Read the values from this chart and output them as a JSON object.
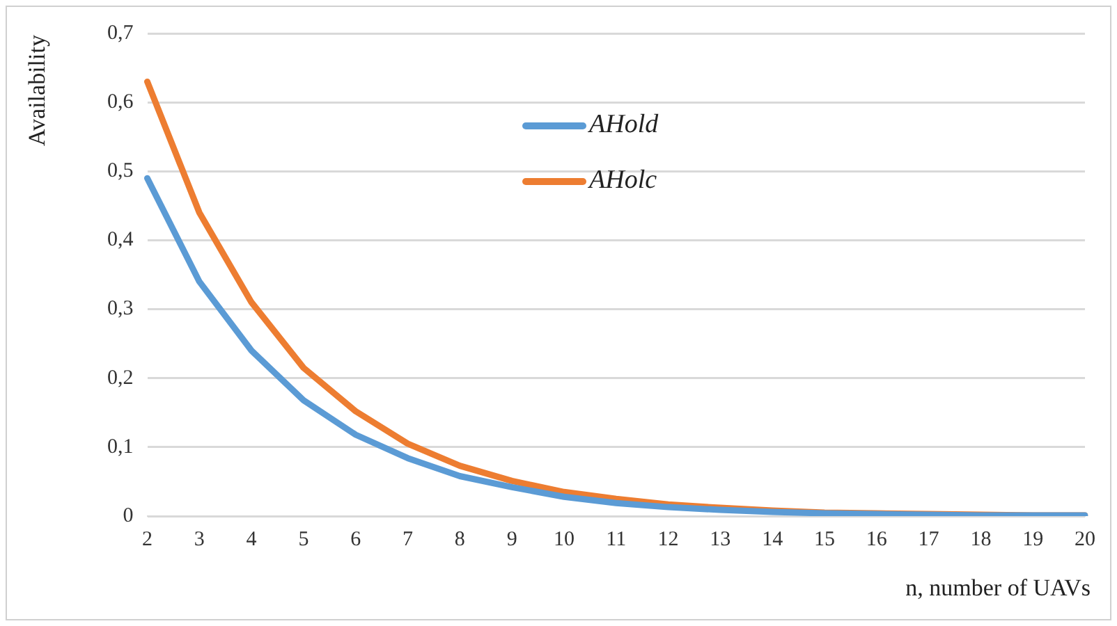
{
  "chart_data": {
    "type": "line",
    "xlabel": "n, number of UAVs",
    "ylabel": "Availability",
    "categories": [
      "2",
      "3",
      "4",
      "5",
      "6",
      "7",
      "8",
      "9",
      "10",
      "11",
      "12",
      "13",
      "14",
      "15",
      "16",
      "17",
      "18",
      "19",
      "20"
    ],
    "series": [
      {
        "name": "AHold",
        "color": "#5b9bd5",
        "values": [
          0.49,
          0.34,
          0.24,
          0.168,
          0.118,
          0.084,
          0.058,
          0.042,
          0.028,
          0.019,
          0.013,
          0.009,
          0.006,
          0.004,
          0.003,
          0.002,
          0.001,
          0.001,
          0.001
        ]
      },
      {
        "name": "AHolc",
        "color": "#ed7d31",
        "values": [
          0.63,
          0.44,
          0.31,
          0.215,
          0.152,
          0.105,
          0.073,
          0.051,
          0.035,
          0.025,
          0.017,
          0.012,
          0.008,
          0.005,
          0.004,
          0.003,
          0.002,
          0.001,
          0.001
        ]
      }
    ],
    "ylim": [
      0,
      0.7
    ],
    "yticks": [
      {
        "value": 0,
        "label": "0"
      },
      {
        "value": 0.1,
        "label": "0,1"
      },
      {
        "value": 0.2,
        "label": "0,2"
      },
      {
        "value": 0.3,
        "label": "0,3"
      },
      {
        "value": 0.4,
        "label": "0,4"
      },
      {
        "value": 0.5,
        "label": "0,5"
      },
      {
        "value": 0.6,
        "label": "0,6"
      },
      {
        "value": 0.7,
        "label": "0,7"
      }
    ],
    "grid": "y",
    "legend": "top",
    "marker": "none",
    "line_style": "solid"
  }
}
